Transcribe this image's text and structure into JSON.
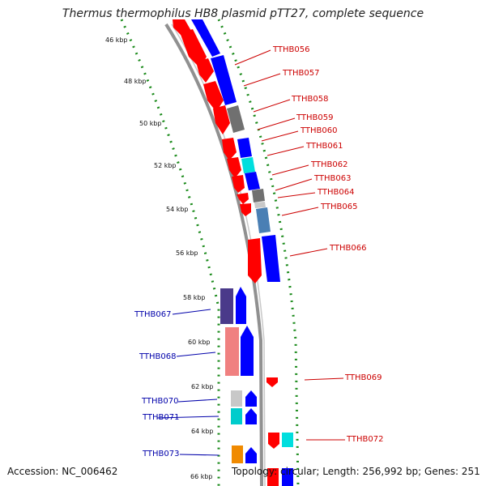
{
  "title": "Thermus thermophilus HB8 plasmid pTT27, complete sequence",
  "accession": "Accession: NC_006462",
  "topology": "Topology: circular; Length: 256,992 bp; Genes: 251",
  "colors": {
    "forward_strand": "#ff0000",
    "reverse_strand": "#0000ff",
    "grey": "#707070",
    "cyan": "#00dede",
    "steel": "#4a7fb4",
    "pink": "#f08080",
    "purple": "#4a3a8a",
    "orange": "#f08a00",
    "label_right": "#cc0000",
    "label_left": "#0000aa",
    "dotted_ring": "#1a8a1a",
    "backbone": "#909090"
  },
  "ticks": [
    "46 kbp",
    "48 kbp",
    "50 kbp",
    "52 kbp",
    "54 kbp",
    "56 kbp",
    "58 kbp",
    "60 kbp",
    "62 kbp",
    "64 kbp",
    "66 kbp"
  ],
  "genes_right": [
    "TTHB056",
    "TTHB057",
    "TTHB058",
    "TTHB059",
    "TTHB060",
    "TTHB061",
    "TTHB062",
    "TTHB063",
    "TTHB064",
    "TTHB065",
    "TTHB066",
    "TTHB069",
    "TTHB072"
  ],
  "genes_left": [
    "TTHB067",
    "TTHB068",
    "TTHB070",
    "TTHB071",
    "TTHB073"
  ]
}
